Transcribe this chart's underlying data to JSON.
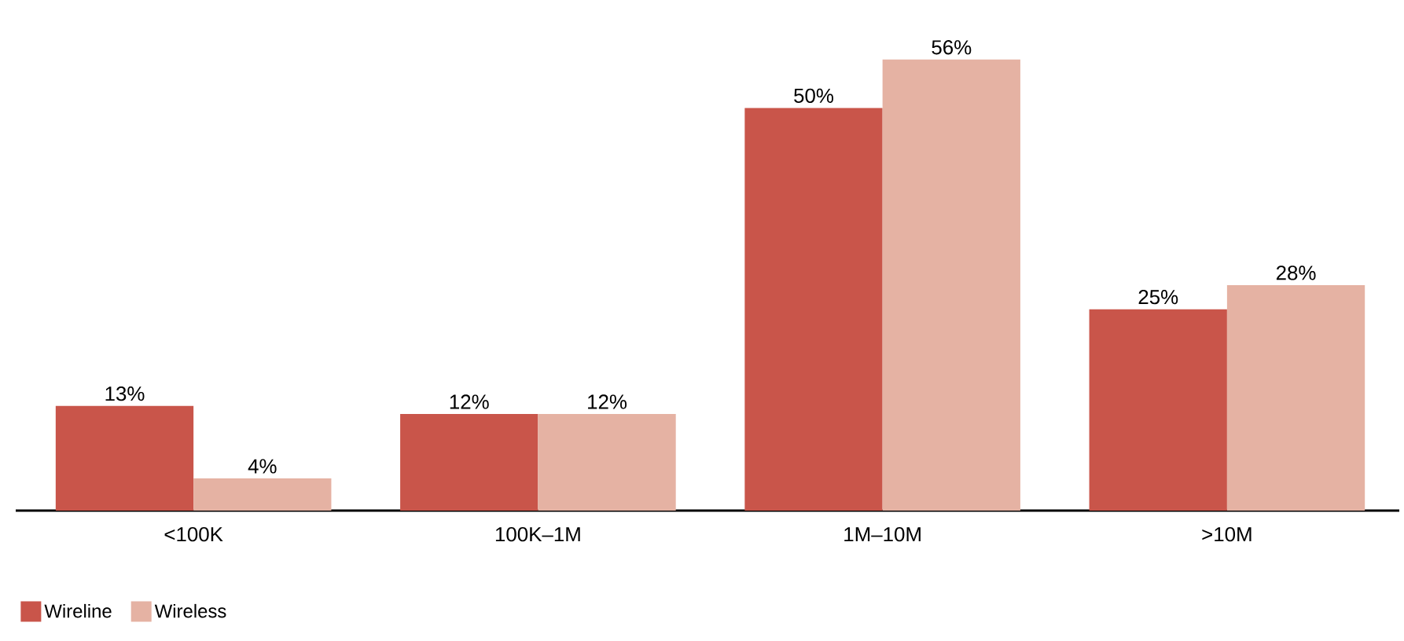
{
  "chart_data": {
    "type": "bar",
    "categories": [
      "<100K",
      "100K–1M",
      "1M–10M",
      ">10M"
    ],
    "series": [
      {
        "name": "Wireline",
        "color": "#c9554a",
        "values": [
          13,
          12,
          50,
          25
        ],
        "value_labels": [
          "13%",
          "12%",
          "50%",
          "25%"
        ]
      },
      {
        "name": "Wireless",
        "color": "#e5b2a3",
        "values": [
          4,
          12,
          56,
          28
        ],
        "value_labels": [
          "4%",
          "12%",
          "56%",
          "28%"
        ]
      }
    ],
    "legend": "bottom left"
  }
}
